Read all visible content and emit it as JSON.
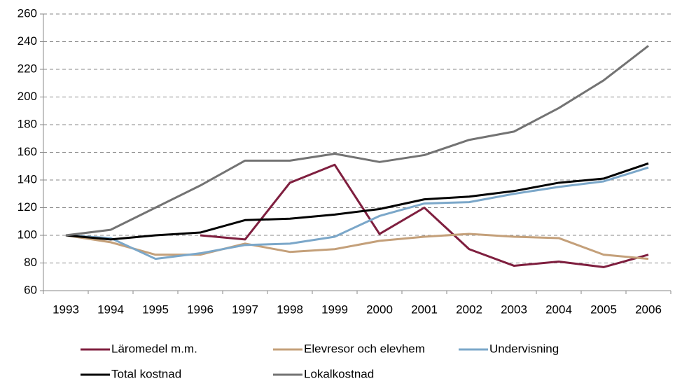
{
  "chart_data": {
    "type": "line",
    "categories": [
      "1993",
      "1994",
      "1995",
      "1996",
      "1997",
      "1998",
      "1999",
      "2000",
      "2001",
      "2002",
      "2003",
      "2004",
      "2005",
      "2006"
    ],
    "ylim": [
      60,
      260
    ],
    "yticks": [
      60,
      80,
      100,
      120,
      140,
      160,
      180,
      200,
      220,
      240,
      260
    ],
    "grid": true,
    "legend": "bottom",
    "series": [
      {
        "name": "Läromedel m.m.",
        "color": "#7f1f3f",
        "values": [
          null,
          null,
          null,
          100,
          97,
          138,
          151,
          101,
          120,
          90,
          78,
          81,
          77,
          86
        ]
      },
      {
        "name": "Elevresor och elevhem",
        "color": "#c4a07a",
        "values": [
          100,
          95,
          86,
          86,
          94,
          88,
          90,
          96,
          99,
          101,
          99,
          98,
          86,
          83
        ]
      },
      {
        "name": "Undervisning",
        "color": "#7ba7c9",
        "values": [
          100,
          98,
          83,
          87,
          93,
          94,
          99,
          114,
          123,
          124,
          130,
          135,
          139,
          149
        ]
      },
      {
        "name": "Total kostnad",
        "color": "#000000",
        "values": [
          100,
          97,
          100,
          102,
          111,
          112,
          115,
          119,
          126,
          128,
          132,
          138,
          141,
          152
        ]
      },
      {
        "name": "Lokalkostnad",
        "color": "#737373",
        "values": [
          100,
          104,
          120,
          136,
          154,
          154,
          159,
          153,
          158,
          169,
          175,
          192,
          212,
          237
        ]
      }
    ]
  }
}
